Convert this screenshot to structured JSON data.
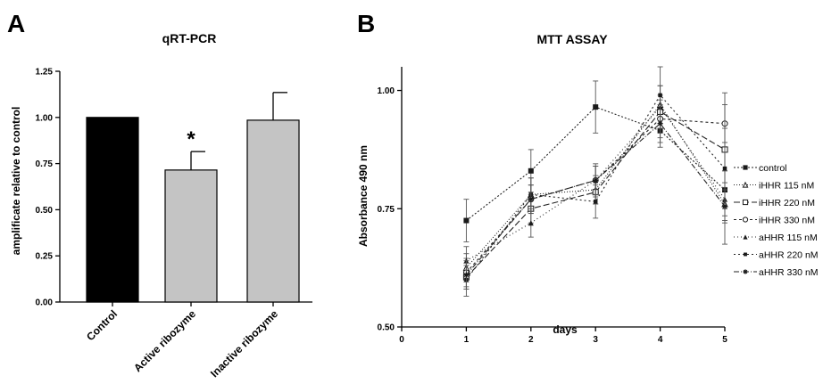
{
  "panel_a": {
    "letter": "A"
  },
  "panel_b": {
    "letter": "B"
  },
  "chart_data": [
    {
      "type": "bar",
      "title": "qRT-PCR",
      "xlabel": "",
      "ylabel": "amplificate relative to control",
      "categories": [
        "Control",
        "Active ribozyme",
        "Inactive ribozyme"
      ],
      "values": [
        1.0,
        0.715,
        0.985
      ],
      "errors": [
        0.0,
        0.1,
        0.15
      ],
      "bar_colors": [
        "#000000",
        "#c4c4c4",
        "#c4c4c4"
      ],
      "ylim": [
        0,
        1.25
      ],
      "yticks": [
        "0.00",
        "0.25",
        "0.50",
        "0.75",
        "1.00",
        "1.25"
      ],
      "annotations": [
        {
          "category": "Active ribozyme",
          "text": "*"
        }
      ]
    },
    {
      "type": "line",
      "title": "MTT ASSAY",
      "xlabel": "days",
      "ylabel": "Absorbance 490 nm",
      "xlim": [
        0,
        5
      ],
      "ylim": [
        0.5,
        1.05
      ],
      "xticks": [
        "0",
        "1",
        "2",
        "3",
        "4",
        "5"
      ],
      "yticks": [
        "0.50",
        "0.75",
        "1.00"
      ],
      "x": [
        1,
        2,
        3,
        4,
        5
      ],
      "legend_position": "right",
      "series": [
        {
          "name": "control",
          "values": [
            0.725,
            0.83,
            0.965,
            0.915,
            0.79
          ],
          "errors": [
            0.045,
            0.045,
            0.055,
            0.035,
            0.04
          ],
          "marker": "square-filled",
          "dash": "2,2"
        },
        {
          "name": "iHHR 115 nM",
          "values": [
            0.625,
            0.78,
            0.79,
            0.97,
            0.76
          ],
          "errors": [
            0.03,
            0.035,
            0.03,
            0.04,
            0.035
          ],
          "marker": "triangle-open",
          "dash": "1,2"
        },
        {
          "name": "iHHR 220 nM",
          "values": [
            0.605,
            0.75,
            0.785,
            0.955,
            0.875
          ],
          "errors": [
            0.025,
            0.03,
            0.025,
            0.035,
            0.045
          ],
          "marker": "square-open",
          "dash": "7,3"
        },
        {
          "name": "iHHR  330 nM",
          "values": [
            0.615,
            0.77,
            0.81,
            0.94,
            0.93
          ],
          "errors": [
            0.03,
            0.03,
            0.03,
            0.04,
            0.04
          ],
          "marker": "circle-open",
          "dash": "3,3"
        },
        {
          "name": "aHHR 115 nM",
          "values": [
            0.64,
            0.72,
            0.81,
            0.965,
            0.77
          ],
          "errors": [
            0.03,
            0.03,
            0.035,
            0.045,
            0.035
          ],
          "marker": "triangle-filled",
          "dash": "1,3"
        },
        {
          "name": "aHHR 220 nM",
          "values": [
            0.6,
            0.78,
            0.765,
            0.99,
            0.835
          ],
          "errors": [
            0.035,
            0.035,
            0.035,
            0.06,
            0.16
          ],
          "marker": "square-small",
          "dash": "2,3"
        },
        {
          "name": "aHHR 330 nM",
          "values": [
            0.61,
            0.77,
            0.81,
            0.93,
            0.755
          ],
          "errors": [
            0.03,
            0.03,
            0.03,
            0.04,
            0.035
          ],
          "marker": "star",
          "dash": "6,2,1,2"
        }
      ]
    }
  ]
}
